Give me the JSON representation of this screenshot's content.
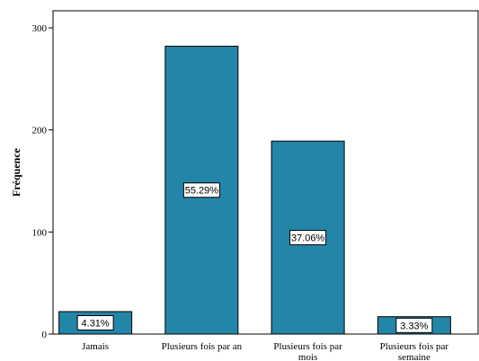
{
  "chart_data": {
    "type": "bar",
    "categories": [
      "Jamais",
      "Plusieurs fois par an",
      "Plusieurs fois par mois",
      "Plusieurs fois par semaine"
    ],
    "values": [
      22,
      282,
      189,
      17
    ],
    "data_labels": [
      "4.31%",
      "55.29%",
      "37.06%",
      "3.33%"
    ],
    "ylabel": "Fréquence",
    "ylim": [
      0,
      300
    ],
    "yticks": [
      "0",
      "100",
      "200",
      "300"
    ],
    "grid": false,
    "colors": {
      "bar": "#2385a8",
      "bar_outline": "#000000",
      "label_box": "#ffffff"
    }
  }
}
